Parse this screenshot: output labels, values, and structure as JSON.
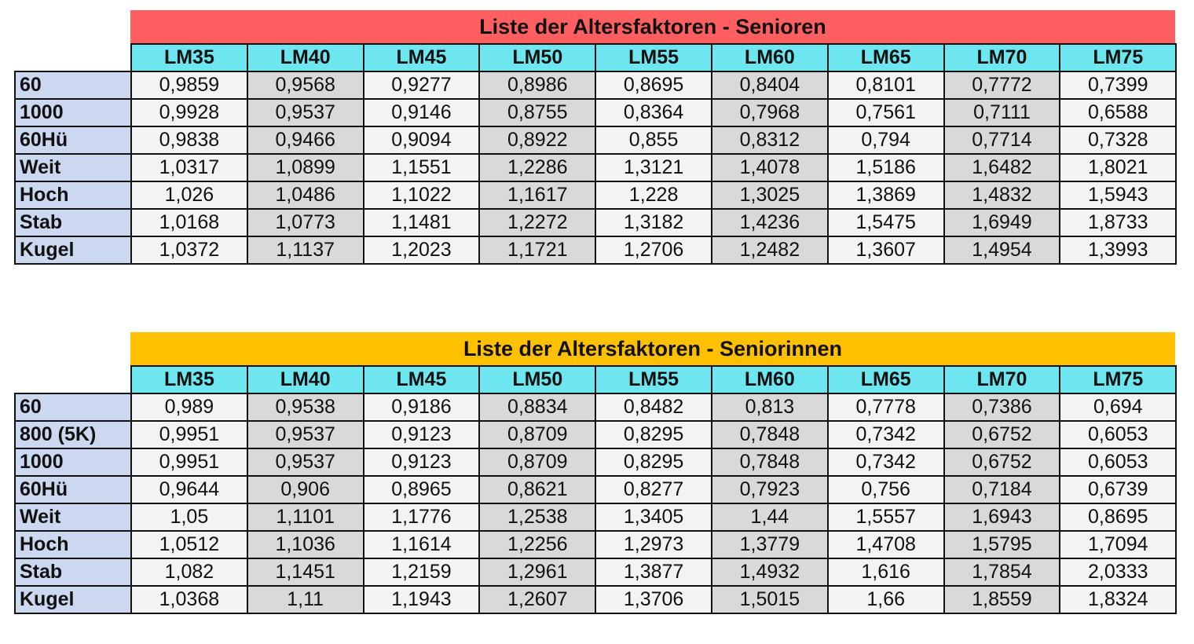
{
  "colors": {
    "seniors_title": "#ff5f61",
    "seniorinnen_title": "#ffc000",
    "header": "#6ee6ef",
    "label": "#ccd8f0",
    "light": "#f3f3f3",
    "dark": "#d9d9d9"
  },
  "tables": [
    {
      "title": "Liste der Altersfaktoren - Senioren",
      "columns": [
        "LM35",
        "LM40",
        "LM45",
        "LM50",
        "LM55",
        "LM60",
        "LM65",
        "LM70",
        "LM75"
      ],
      "rows": [
        {
          "label": "60",
          "values": [
            "0,9859",
            "0,9568",
            "0,9277",
            "0,8986",
            "0,8695",
            "0,8404",
            "0,8101",
            "0,7772",
            "0,7399"
          ]
        },
        {
          "label": "1000",
          "values": [
            "0,9928",
            "0,9537",
            "0,9146",
            "0,8755",
            "0,8364",
            "0,7968",
            "0,7561",
            "0,7111",
            "0,6588"
          ]
        },
        {
          "label": "60Hü",
          "values": [
            "0,9838",
            "0,9466",
            "0,9094",
            "0,8922",
            "0,855",
            "0,8312",
            "0,794",
            "0,7714",
            "0,7328"
          ]
        },
        {
          "label": "Weit",
          "values": [
            "1,0317",
            "1,0899",
            "1,1551",
            "1,2286",
            "1,3121",
            "1,4078",
            "1,5186",
            "1,6482",
            "1,8021"
          ]
        },
        {
          "label": "Hoch",
          "values": [
            "1,026",
            "1,0486",
            "1,1022",
            "1,1617",
            "1,228",
            "1,3025",
            "1,3869",
            "1,4832",
            "1,5943"
          ]
        },
        {
          "label": "Stab",
          "values": [
            "1,0168",
            "1,0773",
            "1,1481",
            "1,2272",
            "1,3182",
            "1,4236",
            "1,5475",
            "1,6949",
            "1,8733"
          ]
        },
        {
          "label": "Kugel",
          "values": [
            "1,0372",
            "1,1137",
            "1,2023",
            "1,1721",
            "1,2706",
            "1,2482",
            "1,3607",
            "1,4954",
            "1,3993"
          ]
        }
      ]
    },
    {
      "title": "Liste der Altersfaktoren - Seniorinnen",
      "columns": [
        "LM35",
        "LM40",
        "LM45",
        "LM50",
        "LM55",
        "LM60",
        "LM65",
        "LM70",
        "LM75"
      ],
      "rows": [
        {
          "label": "60",
          "values": [
            "0,989",
            "0,9538",
            "0,9186",
            "0,8834",
            "0,8482",
            "0,813",
            "0,7778",
            "0,7386",
            "0,694"
          ]
        },
        {
          "label": "800 (5K)",
          "values": [
            "0,9951",
            "0,9537",
            "0,9123",
            "0,8709",
            "0,8295",
            "0,7848",
            "0,7342",
            "0,6752",
            "0,6053"
          ]
        },
        {
          "label": "1000",
          "values": [
            "0,9951",
            "0,9537",
            "0,9123",
            "0,8709",
            "0,8295",
            "0,7848",
            "0,7342",
            "0,6752",
            "0,6053"
          ]
        },
        {
          "label": "60Hü",
          "values": [
            "0,9644",
            "0,906",
            "0,8965",
            "0,8621",
            "0,8277",
            "0,7923",
            "0,756",
            "0,7184",
            "0,6739"
          ]
        },
        {
          "label": "Weit",
          "values": [
            "1,05",
            "1,1101",
            "1,1776",
            "1,2538",
            "1,3405",
            "1,44",
            "1,5557",
            "1,6943",
            "0,8695"
          ]
        },
        {
          "label": "Hoch",
          "values": [
            "1,0512",
            "1,1036",
            "1,1614",
            "1,2256",
            "1,2973",
            "1,3779",
            "1,4708",
            "1,5795",
            "1,7094"
          ]
        },
        {
          "label": "Stab",
          "values": [
            "1,082",
            "1,1451",
            "1,2159",
            "1,2961",
            "1,3877",
            "1,4932",
            "1,616",
            "1,7854",
            "2,0333"
          ]
        },
        {
          "label": "Kugel",
          "values": [
            "1,0368",
            "1,11",
            "1,1943",
            "1,2607",
            "1,3706",
            "1,5015",
            "1,66",
            "1,8559",
            "1,8324"
          ]
        }
      ]
    }
  ]
}
